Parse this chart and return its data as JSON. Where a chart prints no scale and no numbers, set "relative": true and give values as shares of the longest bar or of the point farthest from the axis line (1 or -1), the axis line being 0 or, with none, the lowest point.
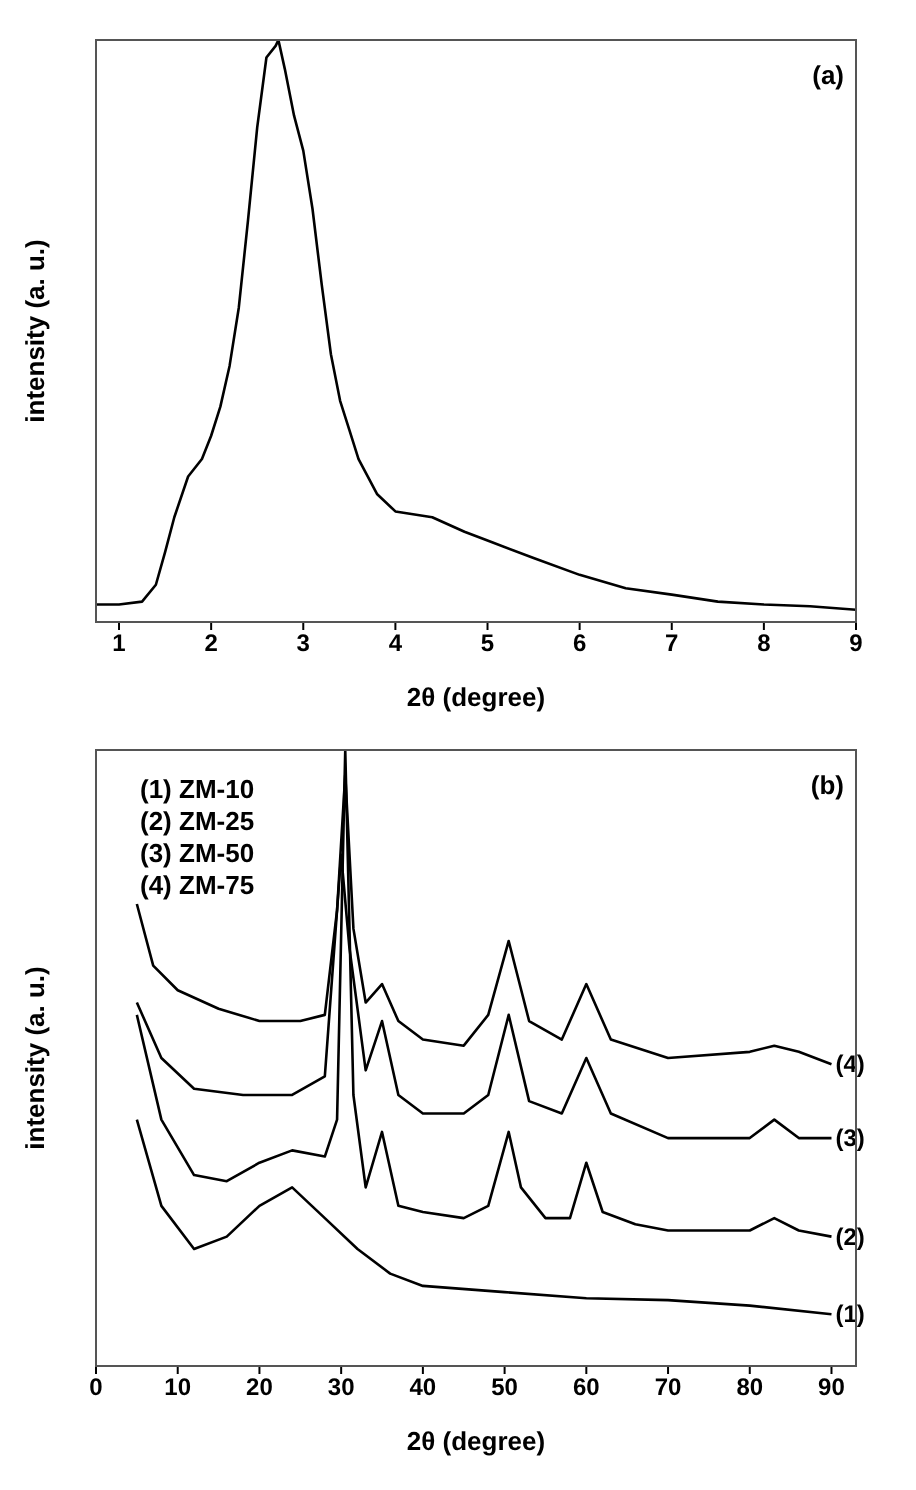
{
  "chart_data": [
    {
      "type": "line",
      "relative": true,
      "xlabel": "2θ (degree)",
      "ylabel": "intensity (a. u.)",
      "annotations": [
        "(a)"
      ],
      "xlim": [
        0.75,
        9
      ],
      "xticks": [
        1,
        2,
        3,
        4,
        5,
        6,
        7,
        8,
        9
      ],
      "grid": false,
      "legend": false,
      "series": [
        {
          "color": "#000000",
          "x": [
            0.75,
            1.0,
            1.25,
            1.4,
            1.5,
            1.6,
            1.75,
            1.9,
            2.0,
            2.1,
            2.2,
            2.3,
            2.4,
            2.5,
            2.6,
            2.7,
            2.73,
            2.8,
            2.9,
            3.0,
            3.1,
            3.2,
            3.3,
            3.4,
            3.5,
            3.6,
            3.8,
            4.0,
            4.4,
            4.75,
            5.0,
            5.5,
            6.0,
            6.5,
            7.0,
            7.5,
            8.0,
            8.5,
            9.0
          ],
          "values": [
            0.03,
            0.03,
            0.035,
            0.064,
            0.12,
            0.18,
            0.25,
            0.28,
            0.32,
            0.37,
            0.44,
            0.54,
            0.69,
            0.85,
            0.97,
            0.99,
            1.0,
            0.95,
            0.87,
            0.81,
            0.71,
            0.58,
            0.46,
            0.38,
            0.33,
            0.28,
            0.22,
            0.19,
            0.18,
            0.155,
            0.14,
            0.11,
            0.081,
            0.058,
            0.047,
            0.035,
            0.03,
            0.027,
            0.021
          ]
        }
      ]
    },
    {
      "type": "line",
      "relative": true,
      "xlabel": "2θ (degree)",
      "ylabel": "intensity (a. u.)",
      "annotations": [
        "(b)",
        "(1) ZM-10",
        "(2) ZM-25",
        "(3) ZM-50",
        "(4) ZM-75"
      ],
      "xlim": [
        0,
        93
      ],
      "xticks": [
        0,
        10,
        20,
        30,
        40,
        50,
        60,
        70,
        80,
        90
      ],
      "grid": false,
      "legend": false,
      "series": [
        {
          "name": "(1)",
          "color": "#000000",
          "x": [
            5,
            8,
            12,
            16,
            20,
            24,
            28,
            32,
            36,
            40,
            50,
            60,
            70,
            80,
            90
          ],
          "values": [
            0.4,
            0.26,
            0.19,
            0.21,
            0.26,
            0.29,
            0.24,
            0.19,
            0.15,
            0.13,
            0.12,
            0.11,
            0.107,
            0.098,
            0.084
          ]
        },
        {
          "name": "(2)",
          "color": "#000000",
          "x": [
            5,
            8,
            12,
            16,
            20,
            24,
            28,
            29.5,
            30.5,
            31.5,
            33,
            35,
            37,
            40,
            45,
            48,
            50.5,
            52,
            55,
            58,
            60,
            62,
            66,
            70,
            80,
            83,
            86,
            90
          ],
          "values": [
            0.57,
            0.4,
            0.31,
            0.3,
            0.33,
            0.35,
            0.34,
            0.4,
            1.0,
            0.44,
            0.29,
            0.38,
            0.26,
            0.25,
            0.24,
            0.26,
            0.38,
            0.29,
            0.24,
            0.24,
            0.33,
            0.25,
            0.23,
            0.22,
            0.22,
            0.24,
            0.22,
            0.21
          ]
        },
        {
          "name": "(3)",
          "color": "#000000",
          "x": [
            5,
            8,
            12,
            18,
            24,
            28,
            30,
            31,
            33,
            35,
            37,
            40,
            45,
            48,
            50.5,
            53,
            57,
            60,
            63,
            70,
            80,
            83,
            86,
            90
          ],
          "values": [
            0.59,
            0.5,
            0.45,
            0.44,
            0.44,
            0.47,
            0.83,
            0.68,
            0.48,
            0.56,
            0.44,
            0.41,
            0.41,
            0.44,
            0.57,
            0.43,
            0.41,
            0.5,
            0.41,
            0.37,
            0.37,
            0.4,
            0.37,
            0.37
          ]
        },
        {
          "name": "(4)",
          "color": "#000000",
          "x": [
            5,
            7,
            10,
            15,
            20,
            25,
            28,
            29.5,
            30.5,
            31.5,
            33,
            35,
            37,
            40,
            45,
            48,
            50.5,
            53,
            57,
            60,
            63,
            70,
            80,
            83,
            86,
            90
          ],
          "values": [
            0.75,
            0.65,
            0.61,
            0.58,
            0.56,
            0.56,
            0.57,
            0.74,
            0.96,
            0.71,
            0.59,
            0.62,
            0.56,
            0.53,
            0.52,
            0.57,
            0.69,
            0.56,
            0.53,
            0.62,
            0.53,
            0.5,
            0.51,
            0.52,
            0.51,
            0.49
          ]
        }
      ]
    }
  ]
}
